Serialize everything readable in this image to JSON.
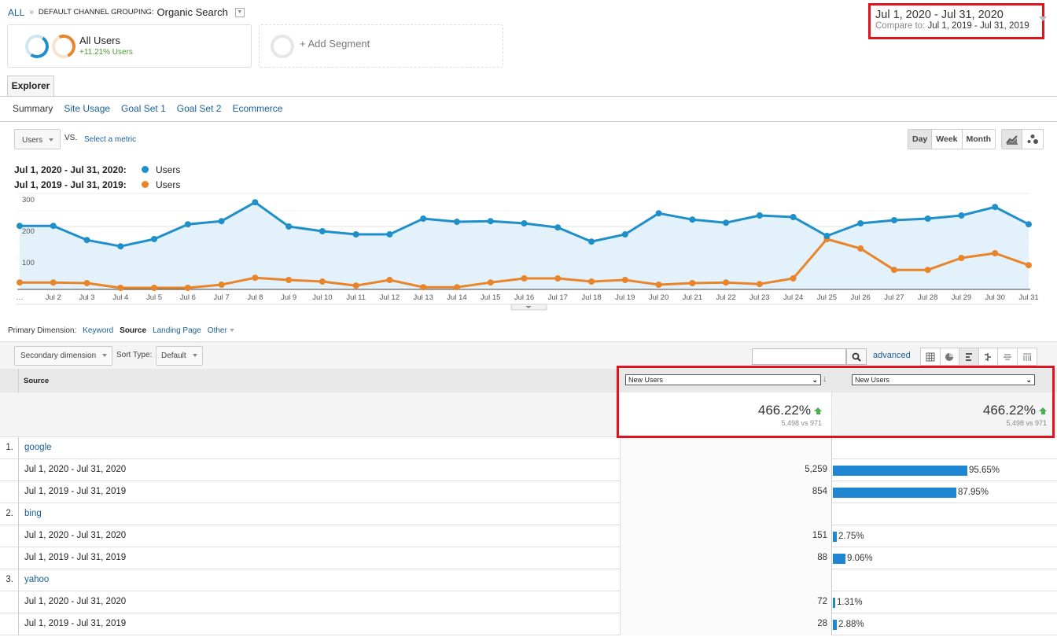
{
  "breadcrumb": {
    "root": "ALL",
    "separator": "»",
    "grouping_label": "DEFAULT CHANNEL GROUPING:",
    "grouping_value": "Organic Search"
  },
  "segments": {
    "active": {
      "title": "All Users",
      "subtitle": "+11.21% Users"
    },
    "add_label": "+ Add Segment"
  },
  "date_range": {
    "main": "Jul 1, 2020 - Jul 31, 2020",
    "compare_label": "Compare to:",
    "compare_value": "Jul 1, 2019 - Jul 31, 2019"
  },
  "explorer_tab": "Explorer",
  "subtabs": [
    "Summary",
    "Site Usage",
    "Goal Set 1",
    "Goal Set 2",
    "Ecommerce"
  ],
  "metric_selector": {
    "value": "Users",
    "vs_label": "VS.",
    "select_metric": "Select a metric"
  },
  "period_buttons": [
    "Day",
    "Week",
    "Month"
  ],
  "period_active": "Day",
  "legend": [
    {
      "range": "Jul 1, 2020 - Jul 31, 2020:",
      "metric": "Users",
      "color": "#1f8fc9"
    },
    {
      "range": "Jul 1, 2019 - Jul 31, 2019:",
      "metric": "Users",
      "color": "#e8852a"
    }
  ],
  "chart_data": {
    "type": "line",
    "title": "",
    "xlabel": "",
    "ylabel": "Users",
    "ylim": [
      0,
      300
    ],
    "yticks": [
      100,
      200,
      300
    ],
    "grid": true,
    "legend_position": "top-left",
    "x": [
      "…",
      "Jul 2",
      "Jul 3",
      "Jul 4",
      "Jul 5",
      "Jul 6",
      "Jul 7",
      "Jul 8",
      "Jul 9",
      "Jul 10",
      "Jul 11",
      "Jul 12",
      "Jul 13",
      "Jul 14",
      "Jul 15",
      "Jul 16",
      "Jul 17",
      "Jul 18",
      "Jul 19",
      "Jul 20",
      "Jul 21",
      "Jul 22",
      "Jul 23",
      "Jul 24",
      "Jul 25",
      "Jul 26",
      "Jul 27",
      "Jul 28",
      "Jul 29",
      "Jul 30",
      "Jul 31"
    ],
    "series": [
      {
        "name": "Users (Jul 1, 2020 - Jul 31, 2020)",
        "color": "#1f8fc9",
        "values": [
          202,
          202,
          157,
          137,
          160,
          207,
          217,
          277,
          200,
          185,
          175,
          175,
          225,
          215,
          217,
          210,
          197,
          152,
          175,
          242,
          222,
          212,
          235,
          230,
          170,
          210,
          220,
          225,
          235,
          262,
          207
        ]
      },
      {
        "name": "Users (Jul 1, 2019 - Jul 31, 2019)",
        "color": "#e8852a",
        "values": [
          22,
          22,
          20,
          5,
          5,
          5,
          15,
          37,
          30,
          25,
          12,
          30,
          7,
          7,
          22,
          35,
          35,
          25,
          30,
          15,
          20,
          22,
          17,
          35,
          160,
          130,
          62,
          62,
          100,
          115,
          77
        ]
      }
    ]
  },
  "dimensions": {
    "label": "Primary Dimension:",
    "items": [
      "Keyword",
      "Source",
      "Landing Page",
      "Other"
    ],
    "active": "Source"
  },
  "toolbar": {
    "secondary_dimension": "Secondary dimension",
    "sort_type_label": "Sort Type:",
    "sort_type_value": "Default",
    "search_placeholder": "",
    "advanced": "advanced"
  },
  "table": {
    "source_header": "Source",
    "metric_col1": "New Users",
    "metric_col2": "New Users",
    "summary": {
      "pct": "466.22%",
      "vs": "5,498 vs 971"
    },
    "rows": [
      {
        "index": "1.",
        "source": "google",
        "periods": [
          {
            "range": "Jul 1, 2020 - Jul 31, 2020",
            "value": "5,259",
            "pct": "95.65%",
            "pct_num": 95.65
          },
          {
            "range": "Jul 1, 2019 - Jul 31, 2019",
            "value": "854",
            "pct": "87.95%",
            "pct_num": 87.95
          }
        ]
      },
      {
        "index": "2.",
        "source": "bing",
        "periods": [
          {
            "range": "Jul 1, 2020 - Jul 31, 2020",
            "value": "151",
            "pct": "2.75%",
            "pct_num": 2.75
          },
          {
            "range": "Jul 1, 2019 - Jul 31, 2019",
            "value": "88",
            "pct": "9.06%",
            "pct_num": 9.06
          }
        ]
      },
      {
        "index": "3.",
        "source": "yahoo",
        "periods": [
          {
            "range": "Jul 1, 2020 - Jul 31, 2020",
            "value": "72",
            "pct": "1.31%",
            "pct_num": 1.31
          },
          {
            "range": "Jul 1, 2019 - Jul 31, 2019",
            "value": "28",
            "pct": "2.88%",
            "pct_num": 2.88
          }
        ]
      }
    ]
  }
}
